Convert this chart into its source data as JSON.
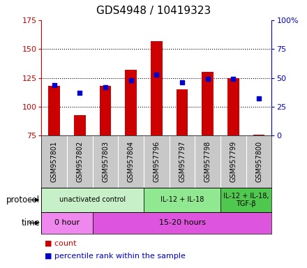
{
  "title": "GDS4948 / 10419323",
  "samples": [
    "GSM957801",
    "GSM957802",
    "GSM957803",
    "GSM957804",
    "GSM957796",
    "GSM957797",
    "GSM957798",
    "GSM957799",
    "GSM957800"
  ],
  "bar_values": [
    118,
    93,
    118,
    132,
    157,
    115,
    130,
    125,
    76
  ],
  "bar_bottom": 75,
  "blue_dot_values": [
    119,
    112,
    117,
    123,
    128,
    121,
    124,
    124,
    107
  ],
  "bar_color": "#cc0000",
  "dot_color": "#0000cc",
  "ylim_left": [
    75,
    175
  ],
  "ylim_right": [
    0,
    100
  ],
  "yticks_left": [
    75,
    100,
    125,
    150,
    175
  ],
  "yticks_right": [
    0,
    25,
    50,
    75,
    100
  ],
  "ytick_labels_left": [
    "75",
    "100",
    "125",
    "150",
    "175"
  ],
  "ytick_labels_right": [
    "0",
    "25",
    "50",
    "75",
    "100%"
  ],
  "left_axis_color": "#cc0000",
  "right_axis_color": "#0000cc",
  "grid_lines_at": [
    100,
    125,
    150
  ],
  "protocol_groups": [
    {
      "label": "unactivated control",
      "start": 0,
      "end": 4,
      "color": "#c8f0c8"
    },
    {
      "label": "IL-12 + IL-18",
      "start": 4,
      "end": 7,
      "color": "#90e890"
    },
    {
      "label": "IL-12 + IL-18,\nTGF-β",
      "start": 7,
      "end": 9,
      "color": "#50c850"
    }
  ],
  "time_groups": [
    {
      "label": "0 hour",
      "start": 0,
      "end": 2,
      "color": "#ee88ee"
    },
    {
      "label": "15-20 hours",
      "start": 2,
      "end": 9,
      "color": "#dd55dd"
    }
  ],
  "legend_count_label": "count",
  "legend_pct_label": "percentile rank within the sample",
  "protocol_label": "protocol",
  "time_label": "time",
  "sample_area_color": "#c8c8c8",
  "sample_divider_color": "#ffffff"
}
